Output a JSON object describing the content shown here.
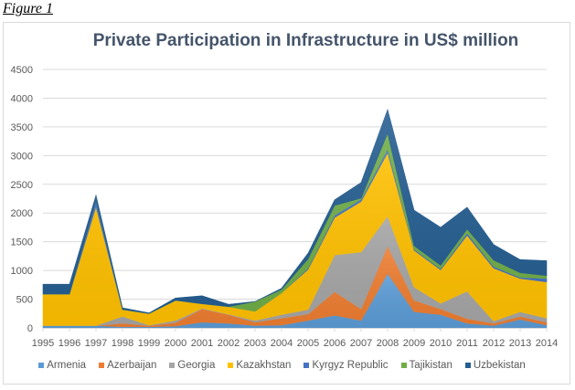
{
  "figure_label": "Figure 1",
  "chart_data": {
    "type": "area",
    "stacked": true,
    "title": "Private Participation in Infrastructure in US$ million",
    "xlabel": "",
    "ylabel": "",
    "ylim": [
      0,
      4500
    ],
    "yticks": [
      0,
      500,
      1000,
      1500,
      2000,
      2500,
      3000,
      3500,
      4000,
      4500
    ],
    "grid": true,
    "legend_position": "bottom",
    "categories": [
      "1995",
      "1996",
      "1997",
      "1998",
      "1999",
      "2000",
      "2001",
      "2002",
      "2003",
      "2004",
      "2005",
      "2006",
      "2007",
      "2008",
      "2009",
      "2010",
      "2011",
      "2012",
      "2013",
      "2014"
    ],
    "series": [
      {
        "name": "Armenia",
        "color": "#5b9bd5",
        "values": [
          40,
          40,
          40,
          20,
          20,
          30,
          100,
          80,
          40,
          50,
          130,
          220,
          130,
          950,
          280,
          230,
          80,
          40,
          150,
          50
        ]
      },
      {
        "name": "Azerbaijan",
        "color": "#ed7d31",
        "values": [
          0,
          0,
          0,
          60,
          20,
          60,
          230,
          150,
          60,
          120,
          110,
          410,
          200,
          480,
          200,
          100,
          80,
          40,
          50,
          50
        ]
      },
      {
        "name": "Georgia",
        "color": "#a5a5a5",
        "values": [
          0,
          0,
          0,
          120,
          10,
          40,
          10,
          10,
          30,
          60,
          80,
          640,
          990,
          520,
          230,
          100,
          480,
          40,
          80,
          70
        ]
      },
      {
        "name": "Kazakhstan",
        "color": "#ffc000",
        "values": [
          550,
          550,
          2070,
          120,
          200,
          350,
          80,
          130,
          160,
          380,
          700,
          650,
          880,
          1100,
          640,
          580,
          970,
          920,
          580,
          630
        ]
      },
      {
        "name": "Kyrgyz Republic",
        "color": "#4472c4",
        "values": [
          0,
          0,
          100,
          0,
          0,
          0,
          0,
          0,
          0,
          0,
          20,
          40,
          40,
          60,
          20,
          20,
          40,
          30,
          20,
          60
        ]
      },
      {
        "name": "Tajikistan",
        "color": "#70ad47",
        "values": [
          0,
          0,
          0,
          0,
          0,
          0,
          0,
          0,
          170,
          60,
          160,
          170,
          20,
          280,
          60,
          60,
          70,
          110,
          80,
          50
        ]
      },
      {
        "name": "Uzbekistan",
        "color": "#255e91",
        "values": [
          170,
          170,
          100,
          30,
          10,
          40,
          140,
          40,
          0,
          20,
          100,
          100,
          270,
          410,
          620,
          660,
          380,
          270,
          230,
          260
        ]
      }
    ]
  }
}
